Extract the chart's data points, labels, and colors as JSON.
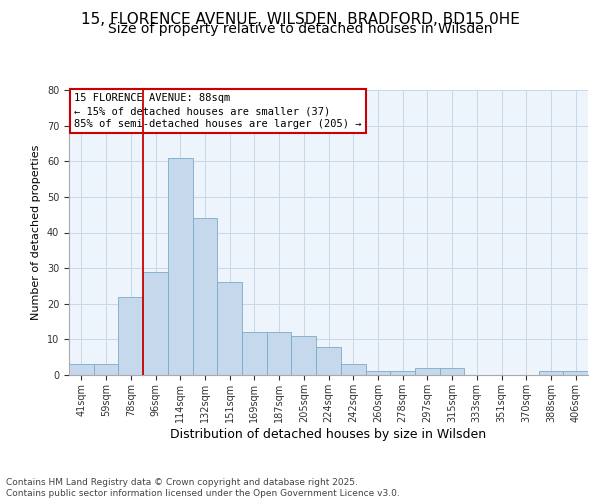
{
  "title1": "15, FLORENCE AVENUE, WILSDEN, BRADFORD, BD15 0HE",
  "title2": "Size of property relative to detached houses in Wilsden",
  "xlabel": "Distribution of detached houses by size in Wilsden",
  "ylabel": "Number of detached properties",
  "bin_labels": [
    "41sqm",
    "59sqm",
    "78sqm",
    "96sqm",
    "114sqm",
    "132sqm",
    "151sqm",
    "169sqm",
    "187sqm",
    "205sqm",
    "224sqm",
    "242sqm",
    "260sqm",
    "278sqm",
    "297sqm",
    "315sqm",
    "333sqm",
    "351sqm",
    "370sqm",
    "388sqm",
    "406sqm"
  ],
  "bar_values": [
    3,
    3,
    22,
    29,
    61,
    44,
    26,
    12,
    12,
    11,
    8,
    3,
    1,
    1,
    2,
    2,
    0,
    0,
    0,
    1,
    1
  ],
  "bar_color": "#c5d8ec",
  "bar_edge_color": "#7aaac8",
  "grid_color": "#c8d8e8",
  "background_color": "#eef4fb",
  "red_line_x": 2.5,
  "annotation_text": "15 FLORENCE AVENUE: 88sqm\n← 15% of detached houses are smaller (37)\n85% of semi-detached houses are larger (205) →",
  "ylim": [
    0,
    80
  ],
  "yticks": [
    0,
    10,
    20,
    30,
    40,
    50,
    60,
    70,
    80
  ],
  "footer_text": "Contains HM Land Registry data © Crown copyright and database right 2025.\nContains public sector information licensed under the Open Government Licence v3.0.",
  "title_fontsize": 11,
  "subtitle_fontsize": 10,
  "xlabel_fontsize": 9,
  "ylabel_fontsize": 8,
  "tick_fontsize": 7,
  "annotation_fontsize": 7.5,
  "footer_fontsize": 6.5
}
